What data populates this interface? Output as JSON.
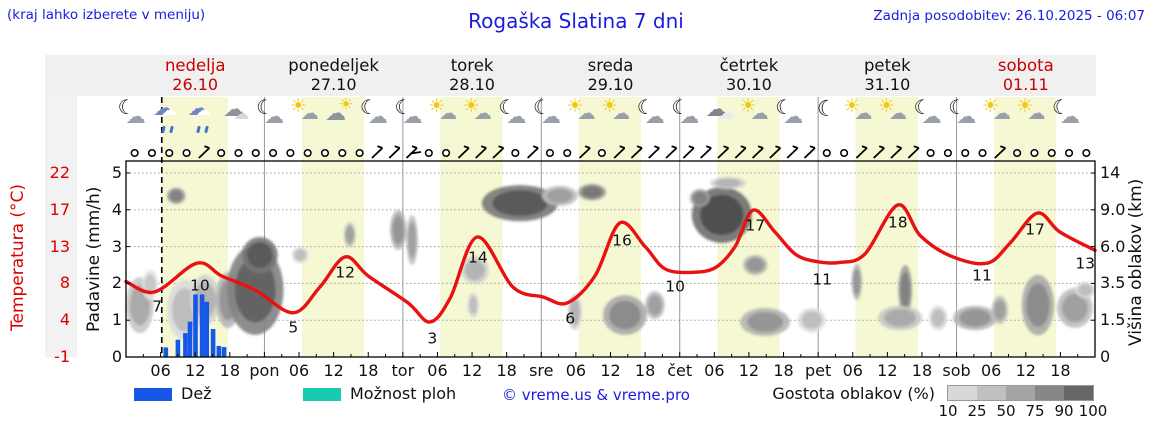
{
  "header": {
    "hint": "(kraj lahko izberete v meniju)",
    "title": "Rogaška Slatina 7 dni",
    "updated": "Zadnja posodobitev: 26.10.2025 - 06:07"
  },
  "days": [
    {
      "name": "nedelja",
      "date": "26.10",
      "highlight": true
    },
    {
      "name": "ponedeljek",
      "date": "27.10",
      "highlight": false
    },
    {
      "name": "torek",
      "date": "28.10",
      "highlight": false
    },
    {
      "name": "sreda",
      "date": "29.10",
      "highlight": false
    },
    {
      "name": "četrtek",
      "date": "30.10",
      "highlight": false
    },
    {
      "name": "petek",
      "date": "31.10",
      "highlight": false
    },
    {
      "name": "sobota",
      "date": "01.11",
      "highlight": true
    }
  ],
  "axes": {
    "temp_label": "Temperatura (°C)",
    "temp_ticks": [
      "22",
      "17",
      "13",
      "8",
      "4",
      "-1"
    ],
    "precip_label": "Padavine (mm/h)",
    "precip_ticks": [
      "5",
      "4",
      "3",
      "2",
      "1",
      "0"
    ],
    "cloud_label": "Višina oblakov (km)",
    "cloud_ticks": [
      "14",
      "9.0",
      "6.0",
      "3.5",
      "1.5",
      "0"
    ],
    "x_hour_labels": [
      "06",
      "12",
      "18"
    ],
    "x_day_abbrs": [
      "pon",
      "tor",
      "sre",
      "čet",
      "pet",
      "sob"
    ]
  },
  "legend": {
    "rain_label": "Dež",
    "rain_color": "#1757e8",
    "showers_label": "Možnost ploh",
    "showers_color": "#17cbb0",
    "credit": "© vreme.us & vreme.pro",
    "density_label": "Gostota oblakov (%)",
    "density_ticks": [
      "10",
      "25",
      "50",
      "75",
      "90",
      "100"
    ],
    "density_colors": [
      "#d8d8d8",
      "#c0c0c0",
      "#a5a5a5",
      "#878787",
      "#666666"
    ]
  },
  "colors": {
    "band": "#f5f8d2",
    "curve": "#e81212",
    "blue_text": "#1b1be0",
    "temp_red": "#dc0000",
    "day_red": "#c80000",
    "header_bg": "#f0f0f0"
  },
  "sky_icons": [
    {
      "day": 0,
      "icons": [
        "moon-cloud",
        "rain-cloud",
        "rain-cloud",
        "cloud"
      ]
    },
    {
      "day": 1,
      "icons": [
        "moon-cloud",
        "sun-cloud",
        "cloud-sun",
        "moon-cloud"
      ]
    },
    {
      "day": 2,
      "icons": [
        "moon-cloud",
        "sun-cloud",
        "sun-cloud",
        "moon-cloud"
      ]
    },
    {
      "day": 3,
      "icons": [
        "moon-cloud",
        "sun-cloud",
        "sun-cloud",
        "moon-cloud"
      ]
    },
    {
      "day": 4,
      "icons": [
        "moon-cloud",
        "clouds",
        "sun-cloud",
        "moon-cloud"
      ]
    },
    {
      "day": 5,
      "icons": [
        "moon",
        "sun-cloud",
        "sun-cloud",
        "moon-cloud"
      ]
    },
    {
      "day": 6,
      "icons": [
        "moon-cloud",
        "sun-cloud",
        "sun-cloud",
        "moon-cloud"
      ]
    }
  ],
  "wind_symbols": [
    "calm",
    "calm",
    "calm",
    "calm",
    "barb",
    "calm",
    "calm",
    "calm",
    "calm",
    "calm",
    "calm",
    "calm",
    "calm",
    "calm",
    "barb",
    "barb",
    "flag",
    "calm",
    "calm",
    "barb",
    "barb",
    "barb",
    "calm",
    "barb",
    "calm",
    "calm",
    "barb",
    "calm",
    "barb",
    "barb",
    "barb",
    "barb",
    "barb",
    "barb",
    "barb",
    "barb",
    "barb",
    "barb",
    "barb",
    "barb",
    "calm",
    "calm",
    "barb",
    "barb",
    "barb",
    "barb",
    "calm",
    "calm",
    "calm",
    "calm",
    "barb",
    "calm",
    "calm",
    "calm",
    "calm",
    "calm"
  ],
  "chart_data": {
    "type": "line",
    "title": "Rogaška Slatina 7 dni",
    "x_axis": {
      "unit": "hours from 26.10.2025 00:00",
      "range": [
        0,
        168
      ]
    },
    "y_left_temperature_c": {
      "ticks": [
        -1,
        4,
        8,
        13,
        17,
        22
      ],
      "label": "Temperatura (°C)"
    },
    "y_left_precip_mm_h": {
      "ticks": [
        0,
        1,
        2,
        3,
        4,
        5
      ],
      "label": "Padavine (mm/h)"
    },
    "y_right_cloud_km": {
      "ticks": [
        0,
        1.5,
        3.5,
        6.0,
        9.0,
        14
      ],
      "label": "Višina oblakov (km)"
    },
    "grid": true,
    "now_hour": 6.2,
    "day_bands": [
      [
        6.2,
        17.7
      ],
      [
        30.5,
        41.3
      ],
      [
        54.5,
        65.3
      ],
      [
        78.5,
        89.3
      ],
      [
        102.5,
        113.3
      ],
      [
        126.5,
        137.3
      ],
      [
        150.5,
        161.3
      ]
    ],
    "temperature_curve": [
      [
        0,
        2.05
      ],
      [
        5,
        1.77
      ],
      [
        12.3,
        2.55
      ],
      [
        16.6,
        2.2
      ],
      [
        22.4,
        1.82
      ],
      [
        29,
        1.2
      ],
      [
        33.6,
        1.9
      ],
      [
        38,
        2.72
      ],
      [
        42,
        2.2
      ],
      [
        48.9,
        1.47
      ],
      [
        52.7,
        0.95
      ],
      [
        56.2,
        1.6
      ],
      [
        60.9,
        3.26
      ],
      [
        67.1,
        1.9
      ],
      [
        72.3,
        1.63
      ],
      [
        76.5,
        1.47
      ],
      [
        81.3,
        2.2
      ],
      [
        85.6,
        3.64
      ],
      [
        90,
        3.0
      ],
      [
        93.4,
        2.4
      ],
      [
        97.8,
        2.3
      ],
      [
        102.1,
        2.42
      ],
      [
        105.6,
        3.0
      ],
      [
        108.7,
        3.99
      ],
      [
        112.5,
        3.4
      ],
      [
        116,
        2.8
      ],
      [
        119.5,
        2.6
      ],
      [
        123.8,
        2.57
      ],
      [
        128.1,
        2.8
      ],
      [
        133.8,
        4.13
      ],
      [
        137.7,
        3.3
      ],
      [
        142.9,
        2.75
      ],
      [
        149.3,
        2.55
      ],
      [
        153.3,
        3.1
      ],
      [
        158,
        3.91
      ],
      [
        161.9,
        3.4
      ],
      [
        168,
        2.9
      ]
    ],
    "temperature_labels": [
      {
        "v": "7",
        "t": 5.4,
        "u": 1.39
      },
      {
        "v": "10",
        "t": 12.8,
        "u": 1.96
      },
      {
        "v": "5",
        "t": 29,
        "u": 0.82
      },
      {
        "v": "12",
        "t": 38,
        "u": 2.31
      },
      {
        "v": "3",
        "t": 53.1,
        "u": 0.52
      },
      {
        "v": "14",
        "t": 61,
        "u": 2.72
      },
      {
        "v": "6",
        "t": 77,
        "u": 1.06
      },
      {
        "v": "16",
        "t": 86,
        "u": 3.18
      },
      {
        "v": "10",
        "t": 95.2,
        "u": 1.93
      },
      {
        "v": "17",
        "t": 109.1,
        "u": 3.59
      },
      {
        "v": "11",
        "t": 120.7,
        "u": 2.12
      },
      {
        "v": "18",
        "t": 133.8,
        "u": 3.67
      },
      {
        "v": "11",
        "t": 148.4,
        "u": 2.23
      },
      {
        "v": "17",
        "t": 157.6,
        "u": 3.48
      },
      {
        "v": "13",
        "t": 166.3,
        "u": 2.55
      }
    ],
    "precip_bars": [
      [
        6.9,
        0.26
      ],
      [
        9.0,
        0.47
      ],
      [
        10.3,
        0.65
      ],
      [
        11.1,
        0.96
      ],
      [
        12.05,
        1.7
      ],
      [
        13.2,
        1.7
      ],
      [
        14.0,
        1.5
      ],
      [
        15.1,
        0.76
      ],
      [
        16.1,
        0.3
      ],
      [
        17.0,
        0.27
      ]
    ],
    "clouds": [
      {
        "t": 2.4,
        "u": 1.41,
        "rt": 2.4,
        "ru": 0.76,
        "d": 40
      },
      {
        "t": 4.2,
        "u": 1.96,
        "rt": 1.4,
        "ru": 0.41,
        "d": 25
      },
      {
        "t": 8.7,
        "u": 4.38,
        "rt": 1.6,
        "ru": 0.22,
        "d": 60
      },
      {
        "t": 10.2,
        "u": 1.28,
        "rt": 3.1,
        "ru": 0.82,
        "d": 30
      },
      {
        "t": 13.7,
        "u": 1.55,
        "rt": 2.6,
        "ru": 0.68,
        "d": 35
      },
      {
        "t": 17.7,
        "u": 1.55,
        "rt": 2.1,
        "ru": 0.76,
        "d": 50
      },
      {
        "t": 22.4,
        "u": 1.82,
        "rt": 4.9,
        "ru": 1.22,
        "d": 75
      },
      {
        "t": 23.2,
        "u": 2.77,
        "rt": 3.1,
        "ru": 0.49,
        "d": 80
      },
      {
        "t": 30.2,
        "u": 2.77,
        "rt": 1.4,
        "ru": 0.22,
        "d": 30
      },
      {
        "t": 38.8,
        "u": 3.32,
        "rt": 1.0,
        "ru": 0.33,
        "d": 45
      },
      {
        "t": 47.2,
        "u": 3.45,
        "rt": 1.4,
        "ru": 0.54,
        "d": 50
      },
      {
        "t": 49.6,
        "u": 3.18,
        "rt": 1.0,
        "ru": 0.68,
        "d": 45
      },
      {
        "t": 68.3,
        "u": 4.18,
        "rt": 6.6,
        "ru": 0.49,
        "d": 80
      },
      {
        "t": 75.2,
        "u": 4.38,
        "rt": 3.1,
        "ru": 0.27,
        "d": 45
      },
      {
        "t": 60.5,
        "u": 2.36,
        "rt": 2.4,
        "ru": 0.38,
        "d": 35
      },
      {
        "t": 60.2,
        "u": 1.41,
        "rt": 1.0,
        "ru": 0.35,
        "d": 30
      },
      {
        "t": 80.8,
        "u": 4.48,
        "rt": 2.4,
        "ru": 0.22,
        "d": 65
      },
      {
        "t": 77.8,
        "u": 1.22,
        "rt": 1.2,
        "ru": 0.49,
        "d": 35
      },
      {
        "t": 86.5,
        "u": 1.14,
        "rt": 3.8,
        "ru": 0.54,
        "d": 55
      },
      {
        "t": 91.7,
        "u": 1.41,
        "rt": 1.7,
        "ru": 0.38,
        "d": 45
      },
      {
        "t": 103.3,
        "u": 3.86,
        "rt": 5.2,
        "ru": 0.76,
        "d": 85
      },
      {
        "t": 99.5,
        "u": 4.32,
        "rt": 1.7,
        "ru": 0.24,
        "d": 60
      },
      {
        "t": 104.4,
        "u": 4.73,
        "rt": 3.1,
        "ru": 0.16,
        "d": 35
      },
      {
        "t": 109.1,
        "u": 2.5,
        "rt": 2.1,
        "ru": 0.27,
        "d": 50
      },
      {
        "t": 110.8,
        "u": 0.95,
        "rt": 4.3,
        "ru": 0.38,
        "d": 50
      },
      {
        "t": 118.9,
        "u": 1.0,
        "rt": 2.4,
        "ru": 0.33,
        "d": 30
      },
      {
        "t": 126.7,
        "u": 2.04,
        "rt": 0.9,
        "ru": 0.49,
        "d": 50
      },
      {
        "t": 135.1,
        "u": 1.82,
        "rt": 1.2,
        "ru": 0.68,
        "d": 60
      },
      {
        "t": 134.2,
        "u": 1.06,
        "rt": 3.8,
        "ru": 0.33,
        "d": 40
      },
      {
        "t": 140.8,
        "u": 1.06,
        "rt": 1.6,
        "ru": 0.33,
        "d": 30
      },
      {
        "t": 147.2,
        "u": 1.06,
        "rt": 3.8,
        "ru": 0.33,
        "d": 50
      },
      {
        "t": 151.5,
        "u": 1.28,
        "rt": 1.4,
        "ru": 0.38,
        "d": 45
      },
      {
        "t": 158.1,
        "u": 1.41,
        "rt": 2.8,
        "ru": 0.82,
        "d": 55
      },
      {
        "t": 164.5,
        "u": 1.33,
        "rt": 3.1,
        "ru": 0.54,
        "d": 45
      },
      {
        "t": 166.3,
        "u": 1.82,
        "rt": 1.7,
        "ru": 0.22,
        "d": 30
      }
    ]
  }
}
